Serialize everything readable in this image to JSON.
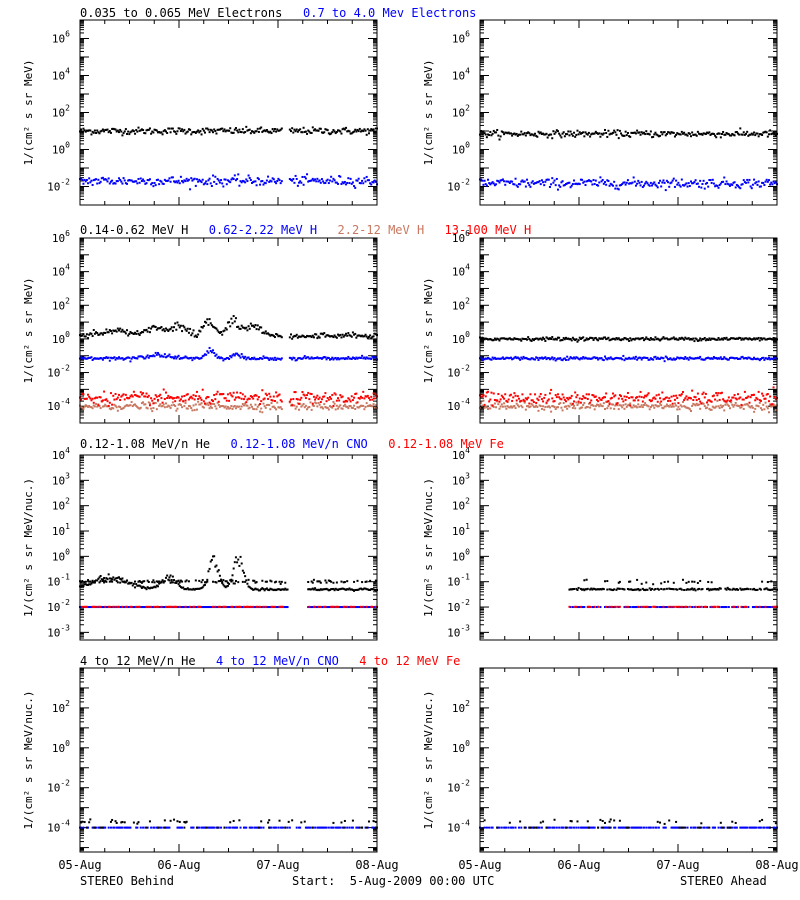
{
  "figure": {
    "footer": {
      "left": "STEREO Behind",
      "center": "Start:  5-Aug-2009 00:00 UTC",
      "right": "STEREO Ahead"
    },
    "x_ticks": [
      "05-Aug",
      "06-Aug",
      "07-Aug",
      "08-Aug"
    ],
    "colors": {
      "black": "#000000",
      "blue": "#0000ff",
      "brown": "#c87860",
      "red": "#ff0000"
    }
  },
  "chart_data": [
    {
      "row": 0,
      "side": "behind",
      "type": "scatter",
      "title_items": [
        {
          "text": "0.035 to 0.065 MeV Electrons",
          "color": "#000000"
        },
        {
          "text": "0.7 to 4.0 Mev Electrons",
          "color": "#0000ff"
        }
      ],
      "ylabel": "1/(cm² s sr MeV)",
      "yscale": "log",
      "ylim": [
        0.001,
        10000000
      ],
      "y_ticks": [
        {
          "exp": -2
        },
        {
          "exp": 0
        },
        {
          "exp": 2
        },
        {
          "exp": 4
        },
        {
          "exp": 6
        }
      ],
      "xlim": [
        0,
        3
      ],
      "series": [
        {
          "color": "#000000",
          "level": 10,
          "spread": 0.09,
          "gaps": [
            [
              2.04,
              2.11
            ]
          ]
        },
        {
          "color": "#0000ff",
          "level": 0.02,
          "spread": 0.13,
          "gaps": [
            [
              2.04,
              2.11
            ]
          ]
        }
      ]
    },
    {
      "row": 0,
      "side": "ahead",
      "type": "scatter",
      "ylabel": "1/(cm² s sr MeV)",
      "yscale": "log",
      "ylim": [
        0.001,
        10000000
      ],
      "y_ticks": [
        {
          "exp": -2
        },
        {
          "exp": 0
        },
        {
          "exp": 2
        },
        {
          "exp": 4
        },
        {
          "exp": 6
        }
      ],
      "xlim": [
        0,
        3
      ],
      "series": [
        {
          "color": "#000000",
          "level": 7,
          "spread": 0.09
        },
        {
          "color": "#0000ff",
          "level": 0.015,
          "spread": 0.13
        }
      ]
    },
    {
      "row": 1,
      "side": "behind",
      "type": "scatter",
      "title_items": [
        {
          "text": "0.14-0.62 MeV H",
          "color": "#000000"
        },
        {
          "text": "0.62-2.22 MeV H",
          "color": "#0000ff"
        },
        {
          "text": "2.2-12 MeV H",
          "color": "#c87860"
        },
        {
          "text": "13-100 MeV H",
          "color": "#ff0000"
        }
      ],
      "ylabel": "1/(cm² s sr MeV)",
      "yscale": "log",
      "ylim": [
        1e-05,
        1000000
      ],
      "y_ticks": [
        {
          "exp": -4
        },
        {
          "exp": -2
        },
        {
          "exp": 0
        },
        {
          "exp": 2
        },
        {
          "exp": 4
        },
        {
          "exp": 6
        }
      ],
      "xlim": [
        0,
        3
      ],
      "series": [
        {
          "color": "#000000",
          "level": 1.5,
          "spread": 0.08,
          "gaps": [
            [
              2.04,
              2.11
            ]
          ],
          "bumps": [
            [
              0.35,
              0.2,
              0.35
            ],
            [
              0.75,
              0.12,
              0.6
            ],
            [
              1.0,
              0.12,
              0.7
            ],
            [
              1.3,
              0.08,
              1.0
            ],
            [
              1.55,
              0.08,
              1.1
            ],
            [
              1.75,
              0.1,
              0.8
            ]
          ]
        },
        {
          "color": "#0000ff",
          "level": 0.07,
          "spread": 0.05,
          "gaps": [
            [
              2.04,
              2.11
            ]
          ],
          "bumps": [
            [
              0.8,
              0.15,
              0.25
            ],
            [
              1.32,
              0.06,
              0.5
            ],
            [
              1.58,
              0.05,
              0.35
            ]
          ]
        },
        {
          "color": "#c87860",
          "level": 0.0001,
          "spread": 0.12,
          "gaps": [
            [
              2.04,
              2.11
            ]
          ]
        },
        {
          "color": "#ff0000",
          "level": 0.0003,
          "spread": 0.18,
          "gaps": [
            [
              2.04,
              2.11
            ]
          ]
        }
      ]
    },
    {
      "row": 1,
      "side": "ahead",
      "type": "scatter",
      "ylabel": "1/(cm² s sr MeV)",
      "yscale": "log",
      "ylim": [
        1e-05,
        1000000
      ],
      "y_ticks": [
        {
          "exp": -4
        },
        {
          "exp": -2
        },
        {
          "exp": 0
        },
        {
          "exp": 2
        },
        {
          "exp": 4
        },
        {
          "exp": 6
        }
      ],
      "xlim": [
        0,
        3
      ],
      "series": [
        {
          "color": "#000000",
          "level": 1.0,
          "spread": 0.05
        },
        {
          "color": "#0000ff",
          "level": 0.07,
          "spread": 0.05
        },
        {
          "color": "#c87860",
          "level": 0.0001,
          "spread": 0.12
        },
        {
          "color": "#ff0000",
          "level": 0.0003,
          "spread": 0.18
        }
      ]
    },
    {
      "row": 2,
      "side": "behind",
      "type": "scatter",
      "title_items": [
        {
          "text": "0.12-1.08 MeV/n He",
          "color": "#000000"
        },
        {
          "text": "0.12-1.08 MeV/n CNO",
          "color": "#0000ff"
        },
        {
          "text": "0.12-1.08 MeV Fe",
          "color": "#ff0000"
        }
      ],
      "ylabel": "1/(cm² s sr MeV/nuc.)",
      "yscale": "log",
      "ylim": [
        0.0005,
        10000
      ],
      "y_ticks": [
        {
          "exp": -3
        },
        {
          "exp": -2
        },
        {
          "exp": -1
        },
        {
          "exp": 0
        },
        {
          "exp": 1
        },
        {
          "exp": 2
        },
        {
          "exp": 3
        },
        {
          "exp": 4
        }
      ],
      "xlim": [
        0,
        3
      ],
      "series": [
        {
          "color": "#000000",
          "level": 0.05,
          "spread": 0.02,
          "gaps": [
            [
              2.1,
              2.3
            ]
          ],
          "bumps": [
            [
              0.3,
              0.25,
              0.6
            ],
            [
              1.35,
              0.07,
              1.4
            ],
            [
              1.6,
              0.07,
              1.5
            ],
            [
              0.9,
              0.1,
              0.6
            ]
          ]
        },
        {
          "color": "#000000",
          "level": 0.1,
          "spread": 0.03,
          "gaps": [
            [
              2.1,
              2.3
            ]
          ],
          "sparse": 0.5
        },
        {
          "color": "#0000ff",
          "level": 0.01,
          "spread": 0.0,
          "gaps": [
            [
              2.1,
              2.3
            ]
          ]
        },
        {
          "color": "#ff0000",
          "level": 0.0102,
          "spread": 0.0,
          "sparse": 0.35,
          "gaps": [
            [
              2.1,
              2.3
            ]
          ]
        }
      ]
    },
    {
      "row": 2,
      "side": "ahead",
      "type": "scatter",
      "ylabel": "1/(cm² s sr MeV/nuc.)",
      "yscale": "log",
      "ylim": [
        0.0005,
        10000
      ],
      "y_ticks": [
        {
          "exp": -3
        },
        {
          "exp": -2
        },
        {
          "exp": -1
        },
        {
          "exp": 0
        },
        {
          "exp": 1
        },
        {
          "exp": 2
        },
        {
          "exp": 3
        },
        {
          "exp": 4
        }
      ],
      "xlim": [
        0,
        3
      ],
      "series": [
        {
          "color": "#000000",
          "level": 0.05,
          "spread": 0.02,
          "start": 0.9,
          "sparse": 0.75
        },
        {
          "color": "#000000",
          "level": 0.1,
          "spread": 0.04,
          "start": 0.9,
          "sparse": 0.2
        },
        {
          "color": "#0000ff",
          "level": 0.01,
          "spread": 0.0,
          "start": 0.9,
          "sparse": 0.7
        },
        {
          "color": "#ff0000",
          "level": 0.0102,
          "spread": 0.0,
          "start": 0.9,
          "sparse": 0.35
        }
      ]
    },
    {
      "row": 3,
      "side": "behind",
      "type": "scatter",
      "title_items": [
        {
          "text": "4 to 12 MeV/n He",
          "color": "#000000"
        },
        {
          "text": "4 to 12 MeV/n CNO",
          "color": "#0000ff"
        },
        {
          "text": "4 to 12 MeV Fe",
          "color": "#ff0000"
        }
      ],
      "ylabel": "1/(cm² s sr MeV/nuc.)",
      "yscale": "log",
      "ylim": [
        6e-06,
        10000
      ],
      "y_ticks": [
        {
          "exp": -4
        },
        {
          "exp": -2
        },
        {
          "exp": 0
        },
        {
          "exp": 2
        }
      ],
      "xlim": [
        0,
        3
      ],
      "series": [
        {
          "color": "#0000ff",
          "level": 0.0001,
          "spread": 0.0,
          "sparse": 0.6
        },
        {
          "color": "#000000",
          "level": 0.0001,
          "spread": 0.0,
          "sparse": 0.1
        },
        {
          "color": "#000000",
          "level": 0.0002,
          "spread": 0.05,
          "sparse": 0.12
        }
      ]
    },
    {
      "row": 3,
      "side": "ahead",
      "type": "scatter",
      "ylabel": "1/(cm² s sr MeV/nuc.)",
      "yscale": "log",
      "ylim": [
        6e-06,
        10000
      ],
      "y_ticks": [
        {
          "exp": -4
        },
        {
          "exp": -2
        },
        {
          "exp": 0
        },
        {
          "exp": 2
        }
      ],
      "xlim": [
        0,
        3
      ],
      "series": [
        {
          "color": "#0000ff",
          "level": 0.0001,
          "spread": 0.0,
          "sparse": 0.6
        },
        {
          "color": "#000000",
          "level": 0.0001,
          "spread": 0.0,
          "sparse": 0.1
        },
        {
          "color": "#000000",
          "level": 0.0002,
          "spread": 0.05,
          "sparse": 0.12
        }
      ]
    }
  ]
}
